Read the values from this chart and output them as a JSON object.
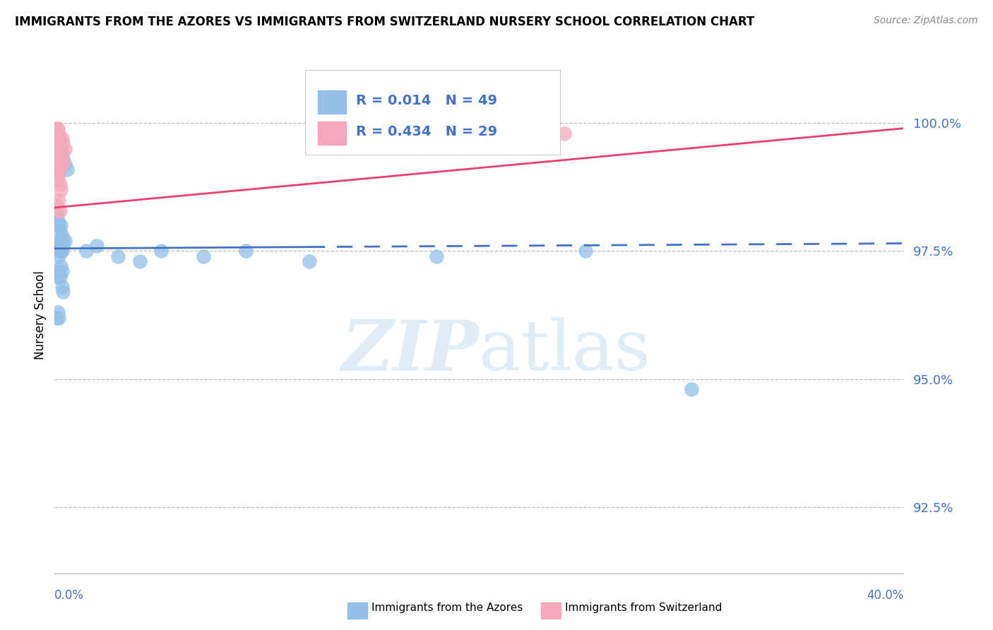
{
  "title": "IMMIGRANTS FROM THE AZORES VS IMMIGRANTS FROM SWITZERLAND NURSERY SCHOOL CORRELATION CHART",
  "source": "Source: ZipAtlas.com",
  "ylabel": "Nursery School",
  "watermark_zip": "ZIP",
  "watermark_atlas": "atlas",
  "blue_label": "Immigrants from the Azores",
  "pink_label": "Immigrants from Switzerland",
  "blue_R": 0.014,
  "blue_N": 49,
  "pink_R": 0.434,
  "pink_N": 29,
  "xlim": [
    0.0,
    40.0
  ],
  "ylim": [
    91.2,
    101.3
  ],
  "yticks": [
    92.5,
    95.0,
    97.5,
    100.0
  ],
  "blue_color": "#92C0E8",
  "pink_color": "#F5A8BC",
  "blue_line_color": "#4472C4",
  "pink_line_color": "#E84070",
  "grid_color": "#BBBBBB",
  "blue_x": [
    0.05,
    0.1,
    0.15,
    0.2,
    0.25,
    0.3,
    0.35,
    0.4,
    0.5,
    0.1,
    0.15,
    0.2,
    0.25,
    0.3,
    0.35,
    0.4,
    0.5,
    0.6,
    0.1,
    0.15,
    0.2,
    0.25,
    0.3,
    0.35,
    0.4,
    0.1,
    0.15,
    0.2,
    0.25,
    0.3,
    0.35,
    0.1,
    0.15,
    0.2,
    0.2,
    0.3,
    0.35,
    0.4,
    1.5,
    2.0,
    3.0,
    4.0,
    5.0,
    7.0,
    9.0,
    12.0,
    18.0,
    25.0,
    30.0
  ],
  "blue_y": [
    97.6,
    97.7,
    97.6,
    97.5,
    97.6,
    97.7,
    97.5,
    97.6,
    97.7,
    99.7,
    99.6,
    99.5,
    99.4,
    99.5,
    99.4,
    99.3,
    99.2,
    99.1,
    98.2,
    98.1,
    98.0,
    97.9,
    98.0,
    97.8,
    97.7,
    97.1,
    97.0,
    97.1,
    97.0,
    97.2,
    97.1,
    96.2,
    96.3,
    96.2,
    97.4,
    97.5,
    96.8,
    96.7,
    97.5,
    97.6,
    97.4,
    97.3,
    97.5,
    97.4,
    97.5,
    97.3,
    97.4,
    97.5,
    94.8
  ],
  "pink_x": [
    0.05,
    0.1,
    0.15,
    0.2,
    0.25,
    0.3,
    0.35,
    0.4,
    0.5,
    0.1,
    0.15,
    0.2,
    0.25,
    0.3,
    0.35,
    0.4,
    0.1,
    0.15,
    0.2,
    0.25,
    0.3,
    0.1,
    0.15,
    0.2,
    0.25,
    0.1,
    0.15,
    0.2,
    24.0
  ],
  "pink_y": [
    99.9,
    99.8,
    99.9,
    99.8,
    99.7,
    99.6,
    99.7,
    99.6,
    99.5,
    99.5,
    99.4,
    99.5,
    99.3,
    99.2,
    99.3,
    99.2,
    99.1,
    98.9,
    99.0,
    98.8,
    98.7,
    98.4,
    98.3,
    98.5,
    98.3,
    99.2,
    99.0,
    99.1,
    99.8
  ],
  "blue_trend_x0": 0.0,
  "blue_trend_y0": 97.55,
  "blue_trend_x1": 40.0,
  "blue_trend_y1": 97.65,
  "blue_solid_end_x": 12.0,
  "pink_trend_x0": 0.0,
  "pink_trend_y0": 98.35,
  "pink_trend_x1": 40.0,
  "pink_trend_y1": 99.9
}
